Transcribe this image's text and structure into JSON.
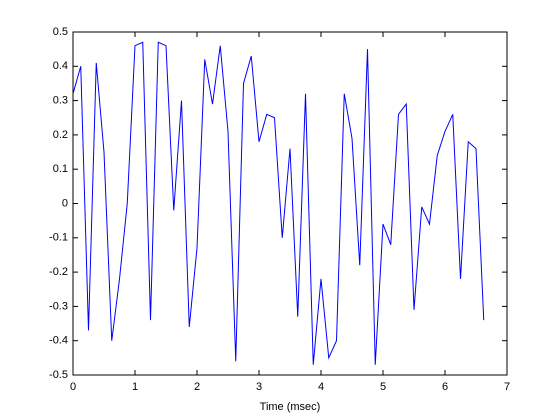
{
  "chart_data": {
    "type": "line",
    "xlabel": "Time (msec)",
    "x": [
      0,
      0.125,
      0.25,
      0.375,
      0.5,
      0.625,
      0.75,
      0.875,
      1,
      1.125,
      1.25,
      1.375,
      1.5,
      1.625,
      1.75,
      1.875,
      2,
      2.125,
      2.25,
      2.375,
      2.5,
      2.625,
      2.75,
      2.875,
      3,
      3.125,
      3.25,
      3.375,
      3.5,
      3.625,
      3.75,
      3.875,
      4,
      4.125,
      4.25,
      4.375,
      4.5,
      4.625,
      4.75,
      4.875,
      5,
      5.125,
      5.25,
      5.375,
      5.5,
      5.625,
      5.75,
      5.875,
      6,
      6.125,
      6.25,
      6.375,
      6.5,
      6.625
    ],
    "series": [
      {
        "color": "#0000ff",
        "values": [
          0.32,
          0.4,
          -0.37,
          0.41,
          0.15,
          -0.4,
          -0.22,
          0.0,
          0.46,
          0.47,
          -0.34,
          0.47,
          0.46,
          -0.02,
          0.3,
          -0.36,
          -0.13,
          0.42,
          0.29,
          0.46,
          0.21,
          -0.46,
          0.35,
          0.43,
          0.18,
          0.26,
          0.25,
          -0.1,
          0.16,
          -0.33,
          0.32,
          -0.47,
          -0.22,
          -0.45,
          -0.4,
          0.32,
          0.19,
          -0.18,
          0.45,
          -0.47,
          -0.06,
          -0.12,
          0.26,
          0.29,
          -0.31,
          -0.01,
          -0.06,
          0.14,
          0.21,
          0.26,
          -0.22,
          0.18,
          0.16,
          -0.34
        ]
      }
    ],
    "xlim": [
      0,
      7
    ],
    "xticks": [
      0,
      1,
      2,
      3,
      4,
      5,
      6,
      7
    ],
    "ylim": [
      -0.5,
      0.5
    ],
    "yticks": [
      -0.5,
      -0.4,
      -0.3,
      -0.2,
      -0.1,
      0,
      0.1,
      0.2,
      0.3,
      0.4,
      0.5
    ]
  }
}
